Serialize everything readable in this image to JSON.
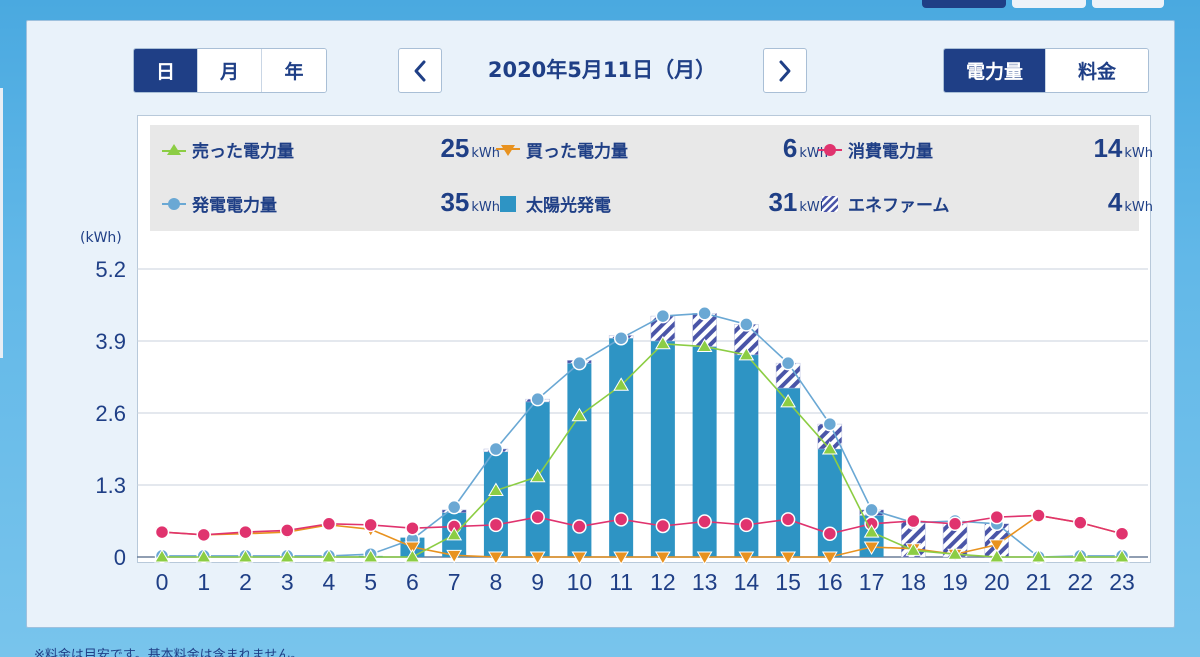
{
  "toggles": {
    "period": [
      {
        "label": "日",
        "active": true
      },
      {
        "label": "月",
        "active": false
      },
      {
        "label": "年",
        "active": false
      }
    ],
    "mode": [
      {
        "label": "電力量",
        "active": true
      },
      {
        "label": "料金",
        "active": false
      }
    ]
  },
  "date_nav": {
    "title": "2020年5月11日（月）",
    "prev_icon": "chevron-left-icon",
    "next_icon": "chevron-right-icon"
  },
  "legend": [
    {
      "label": "売った電力量",
      "value": "25",
      "unit": "kWh",
      "marker": "triangle-up",
      "color": "#8ccd44"
    },
    {
      "label": "買った電力量",
      "value": "6",
      "unit": "kWh",
      "marker": "triangle-down",
      "color": "#e8921f"
    },
    {
      "label": "消費電力量",
      "value": "14",
      "unit": "kWh",
      "marker": "circle",
      "color": "#e0336e"
    },
    {
      "label": "発電電力量",
      "value": "35",
      "unit": "kWh",
      "marker": "circle",
      "color": "#6aa8d4"
    },
    {
      "label": "太陽光発電",
      "value": "31",
      "unit": "kWh",
      "marker": "square",
      "color": "#2e94c4"
    },
    {
      "label": "エネファーム",
      "value": "4",
      "unit": "kWh",
      "marker": "hatched-square",
      "color": "#4a55a8"
    }
  ],
  "footnote": "※料金は目安です。基本料金は含まれません。",
  "chart_data": {
    "type": "bar",
    "ylabel": "(kWh)",
    "ylim": [
      0,
      5.2
    ],
    "yticks": [
      "0",
      "1.3",
      "2.6",
      "3.9",
      "5.2"
    ],
    "categories": [
      "0",
      "1",
      "2",
      "3",
      "4",
      "5",
      "6",
      "7",
      "8",
      "9",
      "10",
      "11",
      "12",
      "13",
      "14",
      "15",
      "16",
      "17",
      "18",
      "19",
      "20",
      "21",
      "22",
      "23"
    ],
    "grid": true,
    "series": [
      {
        "name": "太陽光発電",
        "type": "bar",
        "color": "#2e94c4",
        "values": [
          0,
          0,
          0,
          0,
          0,
          0.02,
          0.35,
          0.8,
          1.9,
          2.8,
          3.5,
          3.95,
          3.9,
          3.8,
          3.65,
          3.05,
          1.95,
          0.75,
          0,
          0,
          0,
          0,
          0,
          0
        ]
      },
      {
        "name": "エネファーム",
        "type": "bar-hatched",
        "color": "#4a55a8",
        "values": [
          0,
          0,
          0,
          0,
          0,
          0,
          0,
          0.05,
          0.05,
          0.05,
          0.05,
          0.05,
          0.45,
          0.6,
          0.55,
          0.45,
          0.45,
          0.1,
          0.65,
          0.6,
          0.6,
          0,
          0,
          0
        ]
      },
      {
        "name": "発電電力量",
        "type": "line",
        "color": "#6aa8d4",
        "values": [
          0.02,
          0.02,
          0.02,
          0.02,
          0.02,
          0.05,
          0.32,
          0.9,
          1.95,
          2.85,
          3.5,
          3.95,
          4.35,
          4.4,
          4.2,
          3.5,
          2.4,
          0.85,
          0.62,
          0.65,
          0.6,
          0,
          0.02,
          0.02
        ]
      },
      {
        "name": "売った電力量",
        "type": "line",
        "color": "#8ccd44",
        "values": [
          0,
          0,
          0,
          0,
          0,
          0,
          0,
          0.4,
          1.2,
          1.45,
          2.55,
          3.1,
          3.85,
          3.8,
          3.65,
          2.8,
          1.95,
          0.45,
          0.12,
          0.05,
          0,
          0,
          0,
          0
        ]
      },
      {
        "name": "買った電力量",
        "type": "line",
        "color": "#e8921f",
        "values": [
          0.45,
          0.4,
          0.42,
          0.45,
          0.58,
          0.5,
          0.18,
          0.03,
          0,
          0,
          0,
          0,
          0,
          0,
          0,
          0,
          0,
          0.18,
          0.15,
          0.05,
          0.22,
          0.75,
          0.62,
          0.42
        ]
      },
      {
        "name": "消費電力量",
        "type": "line",
        "color": "#e0336e",
        "values": [
          0.45,
          0.4,
          0.45,
          0.48,
          0.6,
          0.58,
          0.52,
          0.55,
          0.58,
          0.72,
          0.55,
          0.68,
          0.56,
          0.64,
          0.58,
          0.68,
          0.42,
          0.6,
          0.65,
          0.6,
          0.72,
          0.75,
          0.62,
          0.42
        ]
      }
    ]
  }
}
